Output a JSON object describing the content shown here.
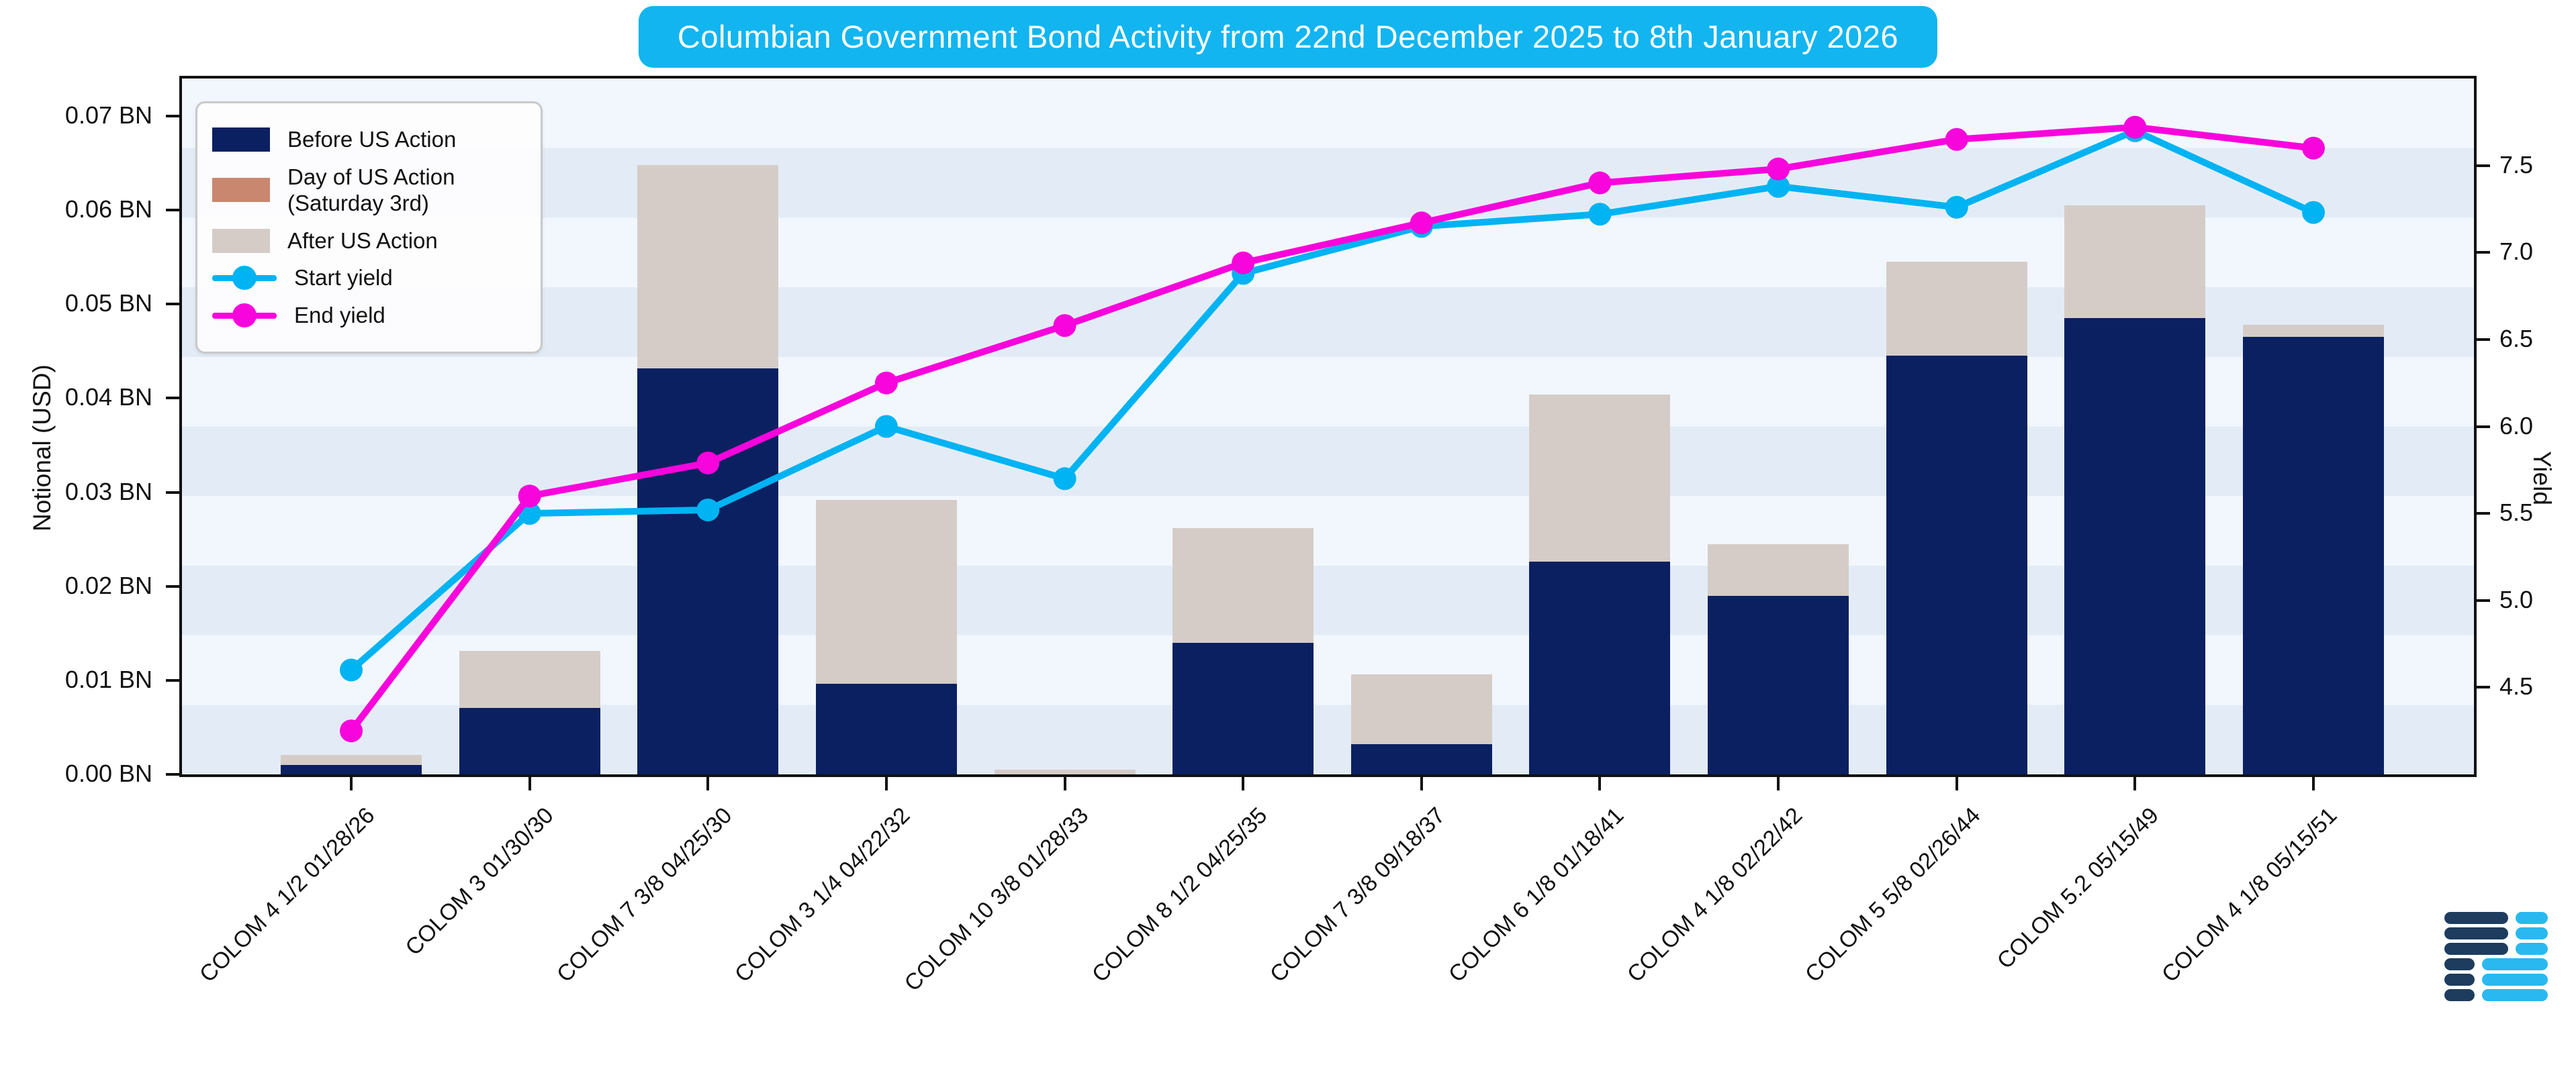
{
  "title": "Columbian Government Bond Activity from 22nd December 2025 to 8th January 2026",
  "legend": {
    "items": [
      {
        "label": "Before US Action",
        "type": "patch",
        "series": "before"
      },
      {
        "label": "Day of US Action (Saturday 3rd)",
        "type": "patch",
        "series": "day"
      },
      {
        "label": "After US Action",
        "type": "patch",
        "series": "after"
      },
      {
        "label": "Start yield",
        "type": "line",
        "series": "start_yield"
      },
      {
        "label": "End yield",
        "type": "line",
        "series": "end_yield"
      }
    ]
  },
  "axes": {
    "left": {
      "label": "Notional (USD)",
      "tick_labels": [
        "0.00 BN",
        "0.01 BN",
        "0.02 BN",
        "0.03 BN",
        "0.04 BN",
        "0.05 BN",
        "0.06 BN",
        "0.07 BN"
      ],
      "tick_values": [
        0.0,
        0.01,
        0.02,
        0.03,
        0.04,
        0.05,
        0.06,
        0.07
      ]
    },
    "right": {
      "label": "Yield",
      "tick_labels": [
        "4.5",
        "5.0",
        "5.5",
        "6.0",
        "6.5",
        "7.0",
        "7.5"
      ],
      "tick_values": [
        4.5,
        5.0,
        5.5,
        6.0,
        6.5,
        7.0,
        7.5
      ]
    }
  },
  "chart_data": {
    "type": "bar",
    "subtype": "stacked bars with two overlay line series on secondary yield axis",
    "categories": [
      "COLOM 4 1/2 01/28/26",
      "COLOM 3 01/30/30",
      "COLOM 7 3/8 04/25/30",
      "COLOM 3 1/4 04/22/32",
      "COLOM 10 3/8 01/28/33",
      "COLOM 8 1/2 04/25/35",
      "COLOM 7 3/8 09/18/37",
      "COLOM 6 1/8 01/18/41",
      "COLOM 4 1/8 02/22/42",
      "COLOM 5 5/8 02/26/44",
      "COLOM 5.2 05/15/49",
      "COLOM 4 1/8 05/15/51"
    ],
    "series": [
      {
        "name": "Before US Action",
        "type": "bar",
        "stack": "notional",
        "axis": "left",
        "values": [
          0.001,
          0.0071,
          0.0432,
          0.0096,
          0.0,
          0.014,
          0.0032,
          0.0226,
          0.019,
          0.0445,
          0.0485,
          0.0465
        ]
      },
      {
        "name": "Day of US Action (Saturday 3rd)",
        "type": "bar",
        "stack": "notional",
        "axis": "left",
        "values": [
          0.0,
          0.0,
          0.0,
          0.0,
          0.0,
          0.0,
          0.0,
          0.0,
          0.0,
          0.0,
          0.0,
          0.0
        ]
      },
      {
        "name": "After US Action",
        "type": "bar",
        "stack": "notional",
        "axis": "left",
        "values": [
          0.0011,
          0.006,
          0.0216,
          0.0196,
          0.0005,
          0.0122,
          0.0074,
          0.0178,
          0.0055,
          0.01,
          0.012,
          0.0013
        ]
      },
      {
        "name": "Start yield",
        "type": "line",
        "axis": "right",
        "values": [
          4.6,
          5.5,
          5.52,
          6.0,
          5.7,
          6.88,
          7.15,
          7.22,
          7.38,
          7.26,
          7.7,
          7.23
        ]
      },
      {
        "name": "End yield",
        "type": "line",
        "axis": "right",
        "values": [
          4.25,
          5.6,
          5.79,
          6.25,
          6.58,
          6.94,
          7.17,
          7.4,
          7.48,
          7.65,
          7.72,
          7.6
        ]
      }
    ],
    "title": "Columbian Government Bond Activity from 22nd December 2025 to 8th January 2026",
    "xlabel": "",
    "ylabel_left": "Notional (USD)",
    "ylabel_right": "Yield",
    "ylim_left": [
      0,
      0.074
    ],
    "ylim_right": [
      4.0,
      8.0
    ],
    "grid": "horizontal alternating background bands",
    "legend_position": "upper left"
  },
  "colors": {
    "before": "#0b2061",
    "day": "#c9876f",
    "after": "#d5ccc8",
    "start_yield": "#00b3f2",
    "end_yield": "#f705dc",
    "title_bg": "#12b5f0",
    "title_text": "#ffffff",
    "stripe_light": "#f2f7fd",
    "stripe_dark": "#e3ecf6",
    "axis": "#111111",
    "logo_navy": "#1d3c5e",
    "logo_cyan": "#29b9f0"
  }
}
